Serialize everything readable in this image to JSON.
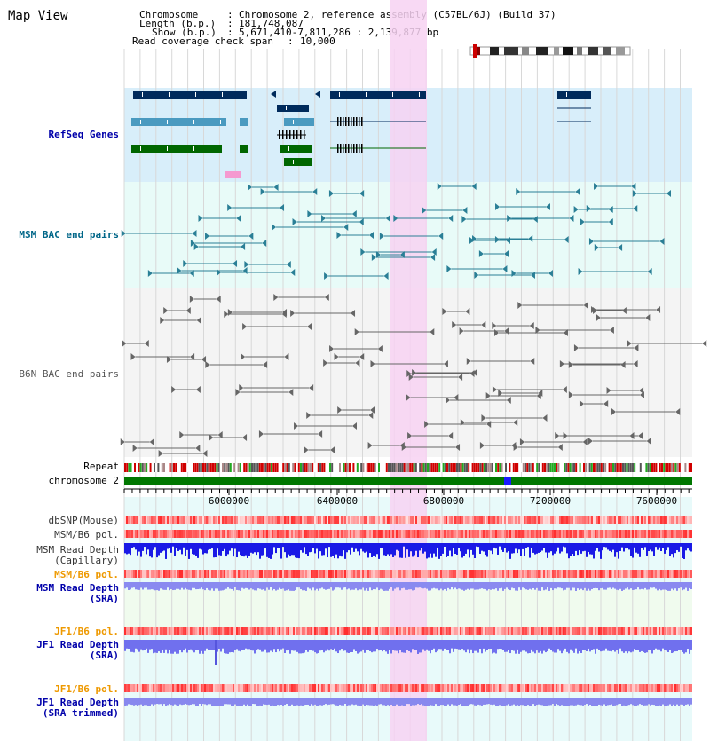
{
  "panel": {
    "title": "Map View"
  },
  "header": {
    "rows": [
      {
        "key": "Chromosome",
        "value": "Chromosome 2, reference assembly (C57BL/6J) (Build 37)"
      },
      {
        "key": "Length (b.p.)",
        "value": "181,748,087"
      },
      {
        "key": "Show (b.p.)",
        "value": "5,671,410-7,811,286 : 2,139,877 bp"
      },
      {
        "key": "Read coverage check span",
        "value": "10,000"
      }
    ]
  },
  "tracks": {
    "refseq": "RefSeq Genes",
    "msm_bac": "MSM BAC end pairs",
    "b6n_bac": "B6N BAC end pairs",
    "repeat": "Repeat",
    "chromosome": "chromosome 2",
    "dbsnp": "dbSNP(Mouse)",
    "msm_pol_1": "MSM/B6 pol.",
    "msm_depth_cap": "MSM Read Depth\n(Capillary)",
    "msm_pol_2": "MSM/B6 pol.",
    "msm_depth_sra": "MSM Read Depth\n(SRA)",
    "jf1_pol_1": "JF1/B6 pol.",
    "jf1_depth_sra": "JF1 Read Depth\n(SRA)",
    "jf1_pol_2": "JF1/B6 pol.",
    "jf1_depth_trim": "JF1 Read Depth\n(SRA trimmed)"
  },
  "axis": {
    "ticks": [
      "6000000",
      "6400000",
      "6800000",
      "7200000",
      "7600000"
    ]
  },
  "colors": {
    "refseq_bg": "#d8eefa",
    "msm_bac_bg": "#e8fbf8",
    "b6n_bac_bg": "#f4f4f4",
    "highlight": "#f7d2f2",
    "label_blue": "#0000aa",
    "label_teal": "#006688",
    "label_orange": "#ee9900",
    "chrom_green": "#007700",
    "gene_navy": "#002b5c",
    "gene_light": "#4a9ac0",
    "gene_green": "#006600"
  }
}
